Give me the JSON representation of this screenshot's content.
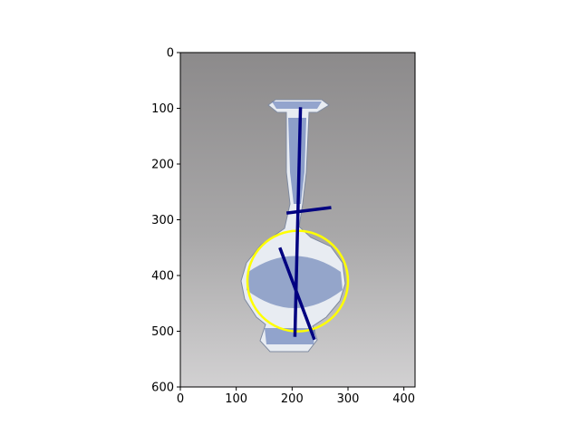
{
  "chart_data": {
    "type": "scatter",
    "title": "",
    "xlabel": "",
    "ylabel": "",
    "xlim": [
      0,
      420
    ],
    "ylim": [
      600,
      0
    ],
    "y_inverted": true,
    "grid": false,
    "legend": "none",
    "x_ticks": [
      "0",
      "100",
      "200",
      "300",
      "400"
    ],
    "y_ticks": [
      "0",
      "100",
      "200",
      "300",
      "400",
      "500",
      "600"
    ],
    "background_image": "blue-and-white-porcelain-vase",
    "annotations": {
      "lines": [
        {
          "name": "vertical-axis-line",
          "x": [
            215,
            205
          ],
          "y": [
            98,
            510
          ],
          "color": "#000080"
        },
        {
          "name": "shoulder-cross-line",
          "x": [
            190,
            270
          ],
          "y": [
            288,
            278
          ],
          "color": "#000080"
        },
        {
          "name": "body-diagonal-line",
          "x": [
            178,
            240
          ],
          "y": [
            350,
            515
          ],
          "color": "#000080"
        }
      ],
      "circles": [
        {
          "name": "body-circle",
          "cx": 210,
          "cy": 410,
          "r": 90,
          "color": "#ffff00"
        }
      ]
    }
  }
}
